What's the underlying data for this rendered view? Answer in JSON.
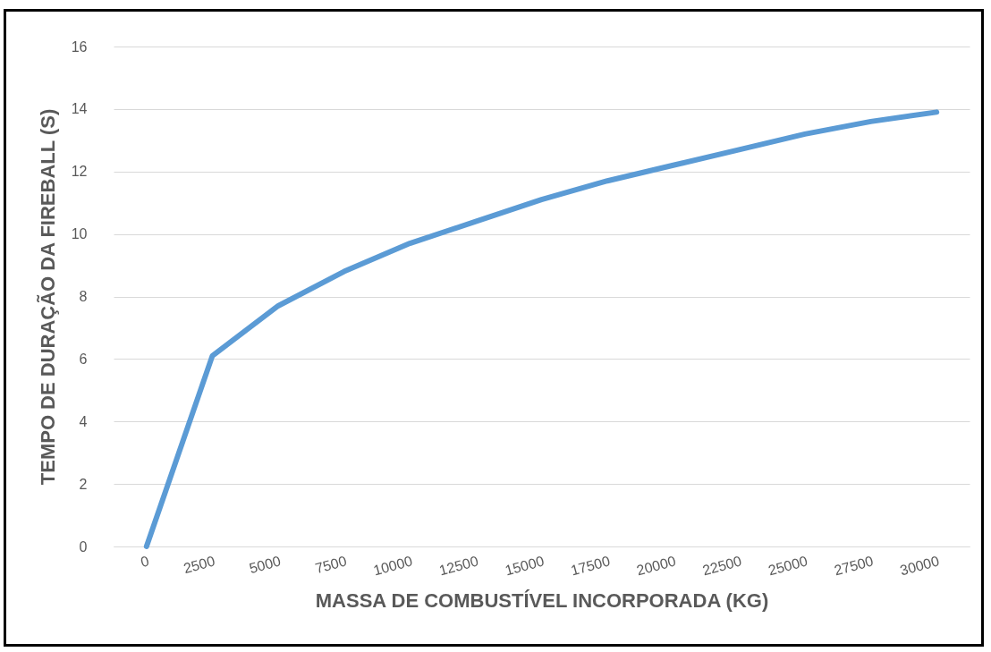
{
  "chart_data": {
    "type": "line",
    "xlabel": "MASSA DE COMBUSTÍVEL INCORPORADA (KG)",
    "ylabel": "TEMPO DE DURAÇÃO DA FIREBALL (S)",
    "categories": [
      "0",
      "2500",
      "5000",
      "7500",
      "10000",
      "12500",
      "15000",
      "17500",
      "20000",
      "22500",
      "25000",
      "27500",
      "30000"
    ],
    "series": [
      {
        "color": "#5b9bd5",
        "values": [
          0,
          6.1,
          7.7,
          8.8,
          9.7,
          10.4,
          11.1,
          11.7,
          12.2,
          12.7,
          13.2,
          13.6,
          13.9
        ]
      }
    ],
    "ylim": [
      0,
      16
    ],
    "yticks": [
      0,
      2,
      4,
      6,
      8,
      10,
      12,
      14,
      16
    ],
    "grid": "y",
    "legend": false,
    "marker": "none",
    "line_style": "solid"
  }
}
